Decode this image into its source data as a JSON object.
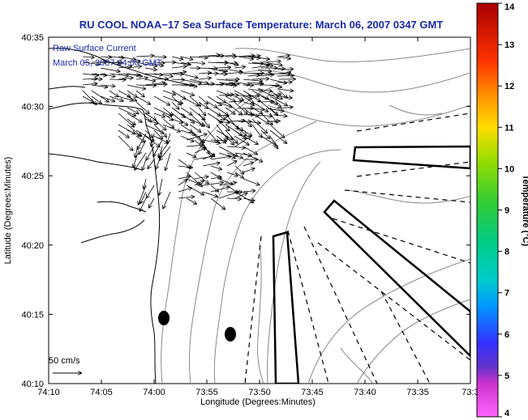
{
  "title": "RU COOL  NOAA−17  Sea Surface Temperature:  March 06, 2007 0347 GMT",
  "annotation": {
    "line1": "Raw Surface Current",
    "line2": "March 05, 2007 04:00 GMT"
  },
  "scale_label": "50 cm/s",
  "x_axis": {
    "label": "Longitude (Degrees:Minutes)",
    "ticks": [
      "74:10",
      "74:05",
      "74:00",
      "73:55",
      "73:50",
      "73:45",
      "73:40",
      "73:35",
      "73:3"
    ]
  },
  "y_axis": {
    "label": "Latitude (Degrees:Minutes)",
    "ticks": [
      "40:35",
      "40:30",
      "40:25",
      "40:20",
      "40:15",
      "40:10"
    ]
  },
  "colorbar": {
    "label": "Temperature (°C)",
    "ticks": [
      "14",
      "13",
      "12",
      "11",
      "10",
      "9",
      "8",
      "7",
      "6",
      "5",
      "4"
    ],
    "colors": [
      "#ff66ff",
      "#cc33cc",
      "#6633cc",
      "#3333ff",
      "#0099ff",
      "#00cccc",
      "#00cc88",
      "#33cc33",
      "#99dd00",
      "#ffdd00",
      "#ff9900",
      "#ff3300",
      "#aa0000"
    ]
  },
  "markers": [
    "station-marker",
    "station-marker"
  ]
}
